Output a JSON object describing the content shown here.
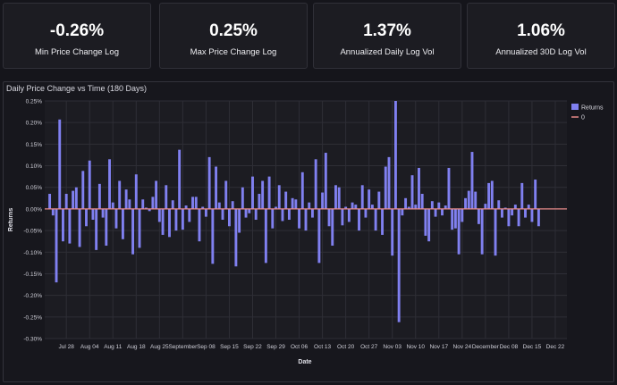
{
  "kpis": [
    {
      "value": "-0.26%",
      "label": "Min Price Change Log"
    },
    {
      "value": "0.25%",
      "label": "Max Price Change Log"
    },
    {
      "value": "1.37%",
      "label": "Annualized Daily Log Vol"
    },
    {
      "value": "1.06%",
      "label": "Annualized 30D Log Vol"
    }
  ],
  "colors": {
    "bar": "#8080f0",
    "zero_line": "#e88a8a",
    "grid": "#2e2e36"
  },
  "chart_data": {
    "type": "bar",
    "title": "Daily Price Change vs Time (180 Days)",
    "xlabel": "Date",
    "ylabel": "Returns",
    "ylim": [
      -0.3,
      0.25
    ],
    "yticks": [
      0.25,
      0.2,
      0.15,
      0.1,
      0.05,
      0.0,
      -0.05,
      -0.1,
      -0.15,
      -0.2,
      -0.25,
      -0.3
    ],
    "ytick_labels": [
      "0.25%",
      "0.20%",
      "0.15%",
      "0.10%",
      "0.05%",
      "0.00%",
      "-0.05%",
      "-0.10%",
      "-0.15%",
      "-0.20%",
      "-0.25%",
      "-0.30%"
    ],
    "xticks": [
      0,
      7,
      14,
      21,
      28,
      35,
      42,
      49,
      56,
      63,
      70,
      77,
      84,
      91,
      98,
      105,
      112,
      119,
      126,
      133,
      140,
      147
    ],
    "xtick_labels": [
      "Jul 28",
      "Aug 04",
      "Aug 11",
      "Aug 18",
      "Aug 25",
      "September",
      "Sep 08",
      "Sep 15",
      "Sep 22",
      "Sep 29",
      "Oct 06",
      "Oct 13",
      "Oct 20",
      "Oct 27",
      "Nov 03",
      "Nov 10",
      "Nov 17",
      "Nov 24",
      "December",
      "Dec 08",
      "Dec 15",
      "Dec 22"
    ],
    "legend": [
      {
        "name": "Returns",
        "kind": "bar"
      },
      {
        "name": "0",
        "kind": "line"
      }
    ],
    "legend_position": "top-right",
    "series": [
      {
        "name": "Returns",
        "start_day": -5,
        "values": [
          0.035,
          -0.015,
          -0.17,
          0.207,
          -0.075,
          0.035,
          -0.08,
          0.042,
          0.05,
          -0.088,
          0.088,
          -0.04,
          0.112,
          -0.025,
          -0.095,
          0.058,
          -0.02,
          -0.085,
          0.115,
          0.015,
          -0.045,
          0.065,
          -0.07,
          0.045,
          0.022,
          -0.105,
          0.08,
          -0.09,
          0.022,
          0.003,
          -0.005,
          0.028,
          0.065,
          -0.03,
          -0.06,
          0.055,
          -0.065,
          0.02,
          -0.05,
          0.137,
          -0.048,
          0.008,
          -0.03,
          0.028,
          0.028,
          -0.075,
          0.005,
          -0.018,
          0.12,
          -0.127,
          0.098,
          0.015,
          -0.025,
          0.065,
          -0.04,
          0.018,
          -0.133,
          -0.055,
          0.05,
          -0.02,
          -0.01,
          0.075,
          -0.025,
          0.035,
          0.065,
          -0.125,
          0.075,
          -0.045,
          0.005,
          0.055,
          -0.028,
          0.04,
          -0.025,
          0.025,
          0.022,
          -0.045,
          0.085,
          -0.05,
          0.015,
          -0.02,
          0.115,
          -0.125,
          0.038,
          0.13,
          -0.04,
          -0.085,
          0.055,
          0.05,
          -0.038,
          0.005,
          -0.03,
          0.015,
          0.01,
          -0.05,
          0.055,
          -0.02,
          0.045,
          0.01,
          -0.05,
          0.04,
          -0.06,
          0.098,
          0.12,
          -0.108,
          0.25,
          -0.262,
          -0.015,
          0.025,
          0.005,
          0.078,
          0.01,
          0.095,
          0.035,
          -0.062,
          -0.075,
          0.018,
          -0.018,
          0.015,
          -0.015,
          0.008,
          0.095,
          -0.048,
          -0.045,
          -0.105,
          -0.03,
          0.025,
          0.042,
          0.132,
          0.04,
          -0.035,
          -0.105,
          0.012,
          0.06,
          0.065,
          -0.108,
          0.02,
          -0.02,
          0.003,
          -0.04,
          -0.015,
          0.01,
          -0.04,
          0.06,
          -0.02,
          0.01,
          -0.03,
          0.068,
          -0.04
        ]
      }
    ]
  }
}
